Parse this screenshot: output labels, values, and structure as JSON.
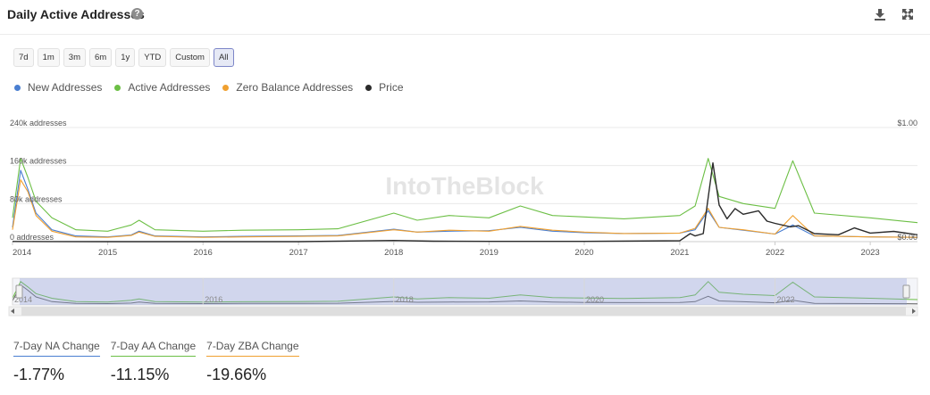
{
  "header": {
    "title": "Daily Active Addresses",
    "help_glyph": "?"
  },
  "ranges": [
    {
      "label": "7d",
      "active": false
    },
    {
      "label": "1m",
      "active": false
    },
    {
      "label": "3m",
      "active": false
    },
    {
      "label": "6m",
      "active": false
    },
    {
      "label": "1y",
      "active": false
    },
    {
      "label": "YTD",
      "active": false
    },
    {
      "label": "Custom",
      "active": false
    },
    {
      "label": "All",
      "active": true
    }
  ],
  "watermark": "IntoTheBlock",
  "colors": {
    "new": "#4a7fd1",
    "active": "#6cbf45",
    "zero": "#f0a030",
    "price": "#2b2b2b"
  },
  "chart_data": {
    "type": "line",
    "title": "Daily Active Addresses",
    "y_ticks": [
      "0 addresses",
      "80k addresses",
      "160k addresses",
      "240k addresses"
    ],
    "y_tick_values": [
      0,
      80000,
      160000,
      240000
    ],
    "y_right_ticks": [
      "$0.00",
      "$1.00"
    ],
    "ylim": [
      0,
      240000
    ],
    "y2lim": [
      0,
      1.0
    ],
    "xlim": [
      "2014-01-01",
      "2023-07-01"
    ],
    "x_ticks": [
      "2014",
      "2015",
      "2016",
      "2017",
      "2018",
      "2019",
      "2020",
      "2021",
      "2022",
      "2023"
    ],
    "x_tick_dates": [
      "2014-01-01",
      "2015-01-01",
      "2016-01-01",
      "2017-01-01",
      "2018-01-01",
      "2019-01-01",
      "2020-01-01",
      "2021-01-01",
      "2022-01-01",
      "2023-01-01"
    ],
    "navigator_ticks": [
      "2014",
      "2016",
      "2018",
      "2020",
      "2022"
    ],
    "navigator_tick_dates": [
      "2014-01-01",
      "2016-01-01",
      "2018-01-01",
      "2020-01-01",
      "2022-01-01"
    ],
    "grid": true,
    "legend_position": "top-left",
    "series": [
      {
        "name": "New Addresses",
        "axis": "left",
        "points": [
          [
            "2014-01-01",
            30000
          ],
          [
            "2014-02-01",
            150000
          ],
          [
            "2014-03-01",
            110000
          ],
          [
            "2014-04-01",
            60000
          ],
          [
            "2014-06-01",
            25000
          ],
          [
            "2014-09-01",
            12000
          ],
          [
            "2015-01-01",
            10000
          ],
          [
            "2015-04-01",
            14000
          ],
          [
            "2015-05-01",
            22000
          ],
          [
            "2015-07-01",
            12000
          ],
          [
            "2016-01-01",
            10000
          ],
          [
            "2016-06-01",
            11000
          ],
          [
            "2017-01-01",
            12000
          ],
          [
            "2017-06-01",
            13000
          ],
          [
            "2018-01-01",
            26000
          ],
          [
            "2018-04-01",
            20000
          ],
          [
            "2018-08-01",
            22000
          ],
          [
            "2019-01-01",
            23000
          ],
          [
            "2019-05-01",
            30000
          ],
          [
            "2019-09-01",
            22000
          ],
          [
            "2020-01-01",
            19000
          ],
          [
            "2020-06-01",
            17000
          ],
          [
            "2021-01-01",
            18000
          ],
          [
            "2021-03-01",
            25000
          ],
          [
            "2021-04-20",
            65000
          ],
          [
            "2021-06-01",
            30000
          ],
          [
            "2021-09-01",
            24000
          ],
          [
            "2022-01-01",
            16000
          ],
          [
            "2022-03-10",
            35000
          ],
          [
            "2022-06-01",
            12000
          ],
          [
            "2023-01-01",
            10000
          ],
          [
            "2023-07-01",
            9000
          ]
        ]
      },
      {
        "name": "Active Addresses",
        "axis": "left",
        "points": [
          [
            "2014-01-01",
            50000
          ],
          [
            "2014-02-01",
            175000
          ],
          [
            "2014-03-01",
            135000
          ],
          [
            "2014-04-01",
            85000
          ],
          [
            "2014-06-01",
            50000
          ],
          [
            "2014-09-01",
            25000
          ],
          [
            "2015-01-01",
            22000
          ],
          [
            "2015-04-01",
            35000
          ],
          [
            "2015-05-01",
            45000
          ],
          [
            "2015-07-01",
            25000
          ],
          [
            "2016-01-01",
            22000
          ],
          [
            "2016-06-01",
            24000
          ],
          [
            "2017-01-01",
            25000
          ],
          [
            "2017-06-01",
            27000
          ],
          [
            "2018-01-01",
            60000
          ],
          [
            "2018-04-01",
            45000
          ],
          [
            "2018-08-01",
            55000
          ],
          [
            "2019-01-01",
            50000
          ],
          [
            "2019-05-01",
            75000
          ],
          [
            "2019-09-01",
            55000
          ],
          [
            "2020-01-01",
            52000
          ],
          [
            "2020-06-01",
            48000
          ],
          [
            "2021-01-01",
            55000
          ],
          [
            "2021-03-01",
            75000
          ],
          [
            "2021-04-20",
            175000
          ],
          [
            "2021-06-01",
            95000
          ],
          [
            "2021-09-01",
            80000
          ],
          [
            "2022-01-01",
            70000
          ],
          [
            "2022-03-10",
            170000
          ],
          [
            "2022-06-01",
            60000
          ],
          [
            "2023-01-01",
            50000
          ],
          [
            "2023-07-01",
            40000
          ]
        ]
      },
      {
        "name": "Zero Balance Addresses",
        "axis": "left",
        "points": [
          [
            "2014-01-01",
            25000
          ],
          [
            "2014-02-01",
            130000
          ],
          [
            "2014-03-01",
            105000
          ],
          [
            "2014-04-01",
            55000
          ],
          [
            "2014-06-01",
            22000
          ],
          [
            "2014-09-01",
            10000
          ],
          [
            "2015-01-01",
            9000
          ],
          [
            "2015-04-01",
            13000
          ],
          [
            "2015-05-01",
            20000
          ],
          [
            "2015-07-01",
            11000
          ],
          [
            "2016-01-01",
            9000
          ],
          [
            "2016-06-01",
            10000
          ],
          [
            "2017-01-01",
            11000
          ],
          [
            "2017-06-01",
            12000
          ],
          [
            "2018-01-01",
            25000
          ],
          [
            "2018-04-01",
            20000
          ],
          [
            "2018-08-01",
            24000
          ],
          [
            "2019-01-01",
            22000
          ],
          [
            "2019-05-01",
            32000
          ],
          [
            "2019-09-01",
            24000
          ],
          [
            "2020-01-01",
            20000
          ],
          [
            "2020-06-01",
            17000
          ],
          [
            "2021-01-01",
            18000
          ],
          [
            "2021-03-01",
            28000
          ],
          [
            "2021-04-20",
            70000
          ],
          [
            "2021-06-01",
            30000
          ],
          [
            "2021-09-01",
            25000
          ],
          [
            "2022-01-01",
            16000
          ],
          [
            "2022-03-10",
            55000
          ],
          [
            "2022-06-01",
            12000
          ],
          [
            "2023-01-01",
            10000
          ],
          [
            "2023-07-01",
            9000
          ]
        ]
      },
      {
        "name": "Price",
        "axis": "right",
        "points": [
          [
            "2014-01-01",
            0.0015
          ],
          [
            "2014-06-01",
            0.0004
          ],
          [
            "2015-01-01",
            0.0002
          ],
          [
            "2016-01-01",
            0.0002
          ],
          [
            "2017-01-01",
            0.0003
          ],
          [
            "2018-01-01",
            0.01
          ],
          [
            "2018-06-01",
            0.004
          ],
          [
            "2019-01-01",
            0.002
          ],
          [
            "2020-01-01",
            0.002
          ],
          [
            "2021-01-01",
            0.008
          ],
          [
            "2021-02-10",
            0.07
          ],
          [
            "2021-03-01",
            0.05
          ],
          [
            "2021-04-01",
            0.07
          ],
          [
            "2021-05-08",
            0.69
          ],
          [
            "2021-06-01",
            0.32
          ],
          [
            "2021-07-01",
            0.2
          ],
          [
            "2021-08-01",
            0.29
          ],
          [
            "2021-09-01",
            0.24
          ],
          [
            "2021-10-30",
            0.27
          ],
          [
            "2021-12-01",
            0.18
          ],
          [
            "2022-01-01",
            0.16
          ],
          [
            "2022-03-01",
            0.13
          ],
          [
            "2022-04-01",
            0.14
          ],
          [
            "2022-06-01",
            0.07
          ],
          [
            "2022-09-01",
            0.06
          ],
          [
            "2022-11-01",
            0.12
          ],
          [
            "2023-01-01",
            0.075
          ],
          [
            "2023-04-01",
            0.09
          ],
          [
            "2023-07-01",
            0.06
          ]
        ]
      }
    ]
  },
  "stats": [
    {
      "label": "7-Day NA Change",
      "value": "-1.77%",
      "color": "#4a7fd1"
    },
    {
      "label": "7-Day AA Change",
      "value": "-11.15%",
      "color": "#6cbf45"
    },
    {
      "label": "7-Day ZBA Change",
      "value": "-19.66%",
      "color": "#f0a030"
    }
  ]
}
